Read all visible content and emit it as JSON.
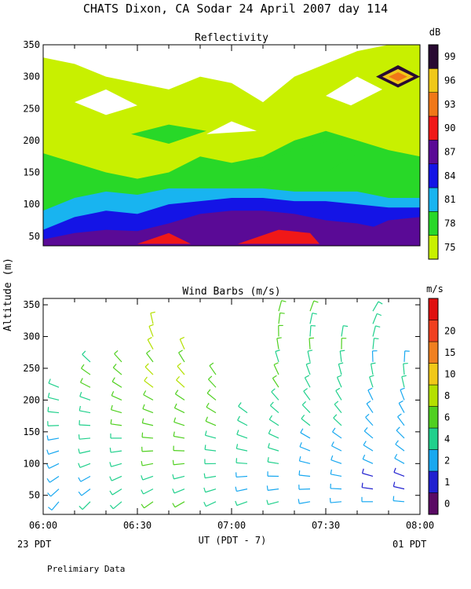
{
  "header": {
    "title": "CHATS Dixon, CA  Sodar  24 April 2007  day 114"
  },
  "footer": {
    "left_time_note": "23 PDT",
    "right_time_note": "01 PDT",
    "x_axis_label": "UT  (PDT - 7)",
    "disclaimer": "Prelimiary Data"
  },
  "shared": {
    "y_axis_label": "Altitude (m)",
    "x_ticks": [
      "06:00",
      "06:30",
      "07:00",
      "07:30",
      "08:00"
    ]
  },
  "chart_data": [
    {
      "type": "heatmap",
      "title": "Reflectivity",
      "ylabel": "Altitude (m)",
      "xlabel": "UT  (PDT - 7)",
      "x_ticks": [
        "06:00",
        "06:30",
        "07:00",
        "07:30",
        "08:00"
      ],
      "y_ticks": [
        50,
        100,
        150,
        200,
        250,
        300,
        350
      ],
      "ylim": [
        35,
        350
      ],
      "xlim_minutes": [
        0,
        120
      ],
      "colorbar": {
        "unit": "dB",
        "levels": [
          75,
          78,
          81,
          84,
          87,
          90,
          93,
          96,
          99
        ],
        "colors": [
          "#c8f000",
          "#28d828",
          "#18b4f0",
          "#1414e6",
          "#5a0a96",
          "#f01818",
          "#f07818",
          "#f0c818",
          "#280a32"
        ]
      },
      "bands": [
        {
          "level": 87,
          "color": "#5a0a96",
          "top": [
            [
              0,
              45
            ],
            [
              10,
              55
            ],
            [
              20,
              60
            ],
            [
              30,
              58
            ],
            [
              40,
              70
            ],
            [
              50,
              85
            ],
            [
              60,
              90
            ],
            [
              70,
              90
            ],
            [
              80,
              85
            ],
            [
              90,
              75
            ],
            [
              100,
              70
            ],
            [
              110,
              60
            ],
            [
              120,
              70
            ]
          ]
        },
        {
          "level": 84,
          "color": "#1414e6",
          "top": [
            [
              0,
              60
            ],
            [
              10,
              80
            ],
            [
              20,
              90
            ],
            [
              30,
              85
            ],
            [
              40,
              100
            ],
            [
              50,
              105
            ],
            [
              60,
              110
            ],
            [
              70,
              110
            ],
            [
              80,
              105
            ],
            [
              90,
              105
            ],
            [
              100,
              100
            ],
            [
              110,
              95
            ],
            [
              120,
              95
            ]
          ]
        },
        {
          "level": 81,
          "color": "#18b4f0",
          "top": [
            [
              0,
              90
            ],
            [
              10,
              110
            ],
            [
              20,
              120
            ],
            [
              30,
              115
            ],
            [
              40,
              125
            ],
            [
              50,
              125
            ],
            [
              60,
              125
            ],
            [
              70,
              125
            ],
            [
              80,
              120
            ],
            [
              90,
              120
            ],
            [
              100,
              120
            ],
            [
              110,
              110
            ],
            [
              120,
              110
            ]
          ]
        },
        {
          "level": 78,
          "color": "#28d828",
          "top": [
            [
              0,
              180
            ],
            [
              10,
              165
            ],
            [
              20,
              150
            ],
            [
              30,
              140
            ],
            [
              40,
              150
            ],
            [
              50,
              175
            ],
            [
              60,
              165
            ],
            [
              70,
              175
            ],
            [
              80,
              200
            ],
            [
              90,
              215
            ],
            [
              100,
              200
            ],
            [
              110,
              185
            ],
            [
              120,
              175
            ]
          ]
        },
        {
          "level": 75,
          "color": "#c8f000",
          "top": [
            [
              0,
              330
            ],
            [
              10,
              320
            ],
            [
              20,
              300
            ],
            [
              30,
              290
            ],
            [
              40,
              280
            ],
            [
              50,
              300
            ],
            [
              60,
              290
            ],
            [
              70,
              260
            ],
            [
              80,
              300
            ],
            [
              90,
              320
            ],
            [
              100,
              340
            ],
            [
              110,
              350
            ],
            [
              120,
              350
            ]
          ]
        }
      ],
      "patches": [
        {
          "level": 90,
          "color": "#f01818",
          "points": [
            [
              62,
              38
            ],
            [
              75,
              60
            ],
            [
              85,
              55
            ],
            [
              88,
              38
            ]
          ]
        },
        {
          "level": 90,
          "color": "#f01818",
          "points": [
            [
              30,
              38
            ],
            [
              40,
              55
            ],
            [
              47,
              38
            ]
          ]
        },
        {
          "level": 87,
          "color": "#5a0a96",
          "points": [
            [
              103,
              60
            ],
            [
              110,
              75
            ],
            [
              120,
              80
            ],
            [
              120,
              40
            ],
            [
              105,
              40
            ]
          ]
        },
        {
          "level": 78,
          "color": "#28d828",
          "points": [
            [
              28,
              210
            ],
            [
              40,
              225
            ],
            [
              52,
              215
            ],
            [
              40,
              195
            ]
          ]
        },
        {
          "level": 78,
          "color": "#28d828",
          "points": [
            [
              68,
              160
            ],
            [
              80,
              185
            ],
            [
              92,
              200
            ],
            [
              100,
              180
            ],
            [
              90,
              150
            ],
            [
              75,
              150
            ]
          ]
        },
        {
          "level": 99,
          "color": "#280a32",
          "points": [
            [
              106,
              300
            ],
            [
              113,
              318
            ],
            [
              120,
              300
            ],
            [
              113,
              283
            ]
          ]
        },
        {
          "level": 96,
          "color": "#f0c818",
          "points": [
            [
              108,
              300
            ],
            [
              113,
              312
            ],
            [
              118,
              300
            ],
            [
              113,
              288
            ]
          ]
        },
        {
          "level": 93,
          "color": "#f07818",
          "points": [
            [
              110,
              300
            ],
            [
              113,
              307
            ],
            [
              116,
              300
            ],
            [
              113,
              293
            ]
          ]
        }
      ],
      "white_patches": [
        {
          "points": [
            [
              10,
              260
            ],
            [
              20,
              280
            ],
            [
              30,
              255
            ],
            [
              20,
              240
            ]
          ]
        },
        {
          "points": [
            [
              52,
              210
            ],
            [
              60,
              230
            ],
            [
              68,
              215
            ]
          ]
        },
        {
          "points": [
            [
              90,
              270
            ],
            [
              100,
              300
            ],
            [
              108,
              280
            ],
            [
              98,
              255
            ]
          ]
        }
      ]
    },
    {
      "type": "scatter",
      "title": "Wind Barbs (m/s)",
      "ylabel": "Altitude (m)",
      "xlabel": "UT  (PDT - 7)",
      "x_ticks": [
        "06:00",
        "06:30",
        "07:00",
        "07:30",
        "08:00"
      ],
      "y_ticks": [
        50,
        100,
        150,
        200,
        250,
        300,
        350
      ],
      "ylim": [
        20,
        360
      ],
      "xlim_minutes": [
        0,
        120
      ],
      "colorbar": {
        "unit": "m/s",
        "levels": [
          0,
          1,
          2,
          4,
          6,
          8,
          10,
          15,
          20
        ],
        "colors": [
          "#5a0a64",
          "#2020d0",
          "#18a8f0",
          "#20d08c",
          "#50d020",
          "#b4e000",
          "#f0c818",
          "#f08020",
          "#f04020",
          "#e01010"
        ]
      },
      "times_minutes": [
        5,
        15,
        25,
        35,
        45,
        55,
        65,
        75,
        85,
        95,
        105,
        115
      ],
      "heights": [
        40,
        60,
        80,
        100,
        120,
        140,
        160,
        180,
        200,
        220,
        240,
        260,
        280,
        300,
        320,
        340
      ],
      "profiles": [
        {
          "t": 5,
          "top": 220,
          "speed_base": 3,
          "dir_base": 220
        },
        {
          "t": 15,
          "top": 260,
          "speed_base": 4,
          "dir_base": 225
        },
        {
          "t": 25,
          "top": 260,
          "speed_base": 5,
          "dir_base": 230
        },
        {
          "t": 35,
          "top": 320,
          "speed_base": 6,
          "dir_base": 235
        },
        {
          "t": 45,
          "top": 280,
          "speed_base": 6,
          "dir_base": 240
        },
        {
          "t": 55,
          "top": 240,
          "speed_base": 5,
          "dir_base": 245
        },
        {
          "t": 65,
          "top": 180,
          "speed_base": 4,
          "dir_base": 250
        },
        {
          "t": 75,
          "top": 340,
          "speed_base": 4,
          "dir_base": 255
        },
        {
          "t": 85,
          "top": 340,
          "speed_base": 3,
          "dir_base": 260
        },
        {
          "t": 95,
          "top": 300,
          "speed_base": 3,
          "dir_base": 265
        },
        {
          "t": 105,
          "top": 340,
          "speed_base": 2,
          "dir_base": 270
        },
        {
          "t": 115,
          "top": 260,
          "speed_base": 2,
          "dir_base": 275
        }
      ]
    }
  ]
}
